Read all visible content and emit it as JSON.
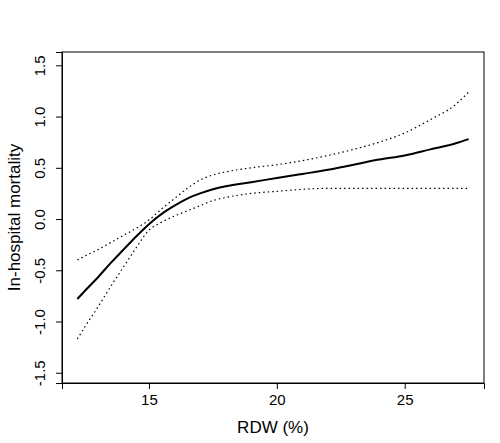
{
  "chart_data": {
    "type": "line",
    "x_label": "RDW (%)",
    "y_label": "In-hospital mortality",
    "x": [
      12.2,
      12.5,
      13,
      13.5,
      14,
      14.5,
      15,
      15.5,
      16,
      16.5,
      17,
      17.5,
      18,
      19,
      20,
      21,
      22,
      23,
      24,
      25,
      26,
      27,
      27.5
    ],
    "series": [
      {
        "color": "#000000",
        "line_style": "solid",
        "values": [
          -0.78,
          -0.7,
          -0.57,
          -0.43,
          -0.3,
          -0.17,
          -0.05,
          0.05,
          0.13,
          0.2,
          0.25,
          0.29,
          0.32,
          0.36,
          0.4,
          0.44,
          0.48,
          0.53,
          0.58,
          0.62,
          0.68,
          0.74,
          0.78
        ]
      },
      {
        "color": "#000000",
        "line_style": "dotted",
        "values": [
          -0.4,
          -0.36,
          -0.3,
          -0.23,
          -0.16,
          -0.09,
          -0.01,
          0.1,
          0.2,
          0.3,
          0.38,
          0.43,
          0.46,
          0.5,
          0.53,
          0.57,
          0.62,
          0.68,
          0.75,
          0.84,
          0.97,
          1.12,
          1.24
        ]
      },
      {
        "color": "#000000",
        "line_style": "dotted",
        "values": [
          -1.17,
          -1.05,
          -0.86,
          -0.66,
          -0.47,
          -0.28,
          -0.11,
          -0.03,
          0.03,
          0.08,
          0.13,
          0.18,
          0.21,
          0.25,
          0.27,
          0.29,
          0.3,
          0.3,
          0.3,
          0.3,
          0.3,
          0.3,
          0.3
        ]
      }
    ],
    "xlim": [
      11.6,
      28.1
    ],
    "ylim": [
      -1.6,
      1.63
    ],
    "xticks": [
      15,
      20,
      25
    ],
    "yticks": [
      {
        "value": -1.5,
        "label": "-1.5"
      },
      {
        "value": -1,
        "label": "-1.0"
      },
      -0.5,
      {
        "value": 0,
        "label": "0.0"
      },
      0.5,
      {
        "value": 1,
        "label": "1.0"
      },
      1.5
    ],
    "grid": false
  }
}
